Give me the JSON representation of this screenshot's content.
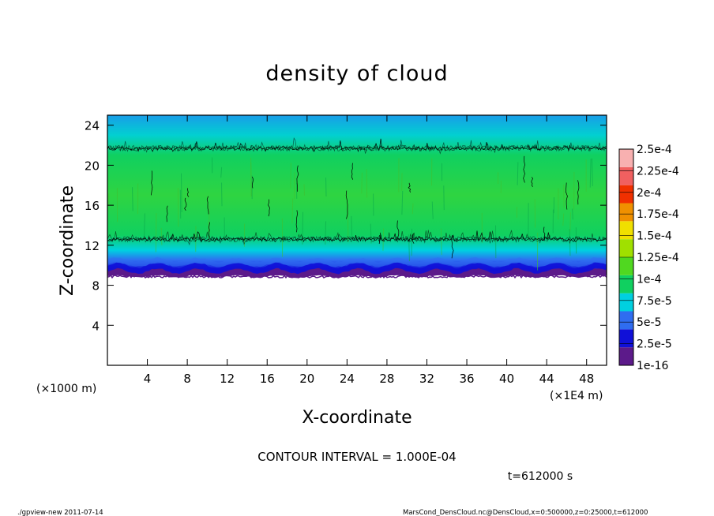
{
  "chart_data": {
    "type": "heatmap",
    "title": "density of cloud",
    "xlabel": "X-coordinate",
    "ylabel": "Z-coordinate",
    "x_unit_label": "(×1E4 m)",
    "y_unit_label": "(×1000 m)",
    "xlim": [
      0,
      50
    ],
    "ylim": [
      0,
      25
    ],
    "x_ticks": [
      "4",
      "8",
      "12",
      "16",
      "20",
      "24",
      "28",
      "32",
      "36",
      "40",
      "44",
      "48"
    ],
    "x_tick_values": [
      4,
      8,
      12,
      16,
      20,
      24,
      28,
      32,
      36,
      40,
      44,
      48
    ],
    "y_ticks": [
      "4",
      "8",
      "12",
      "16",
      "20",
      "24"
    ],
    "y_tick_values": [
      4,
      8,
      12,
      16,
      20,
      24
    ],
    "colorbar": {
      "labels": [
        "1e-16",
        "2.5e-5",
        "5e-5",
        "7.5e-5",
        "1e-4",
        "1.25e-4",
        "1.5e-4",
        "1.75e-4",
        "2e-4",
        "2.25e-4",
        "2.5e-4"
      ],
      "colors": [
        "#5c1a8a",
        "#1010d8",
        "#2f6df0",
        "#00d0e0",
        "#10d060",
        "#50d820",
        "#a0e000",
        "#f0e000",
        "#f09000",
        "#f03000",
        "#f06060",
        "#f8b0b0"
      ]
    },
    "profile": {
      "description_levels": [
        {
          "z": 9.0,
          "density": 1e-16
        },
        {
          "z": 9.5,
          "density": 2.5e-05
        },
        {
          "z": 10.5,
          "density": 5e-05
        },
        {
          "z": 11.5,
          "density": 7.5e-05
        },
        {
          "z": 13.0,
          "density": 0.0001
        },
        {
          "z": 17.0,
          "density": 0.00012
        },
        {
          "z": 21.0,
          "density": 0.0001
        },
        {
          "z": 23.0,
          "density": 8e-05
        },
        {
          "z": 25.0,
          "density": 7e-05
        }
      ],
      "contour_levels_z": [
        12.6,
        21.7
      ]
    },
    "contour_interval": "CONTOUR INTERVAL = 1.000E-04",
    "time_label": "t=612000 s"
  },
  "footer": {
    "left": "./gpview-new   2011-07-14",
    "right": "MarsCond_DensCloud.nc@DensCloud,x=0:500000,z=0:25000,t=612000"
  }
}
